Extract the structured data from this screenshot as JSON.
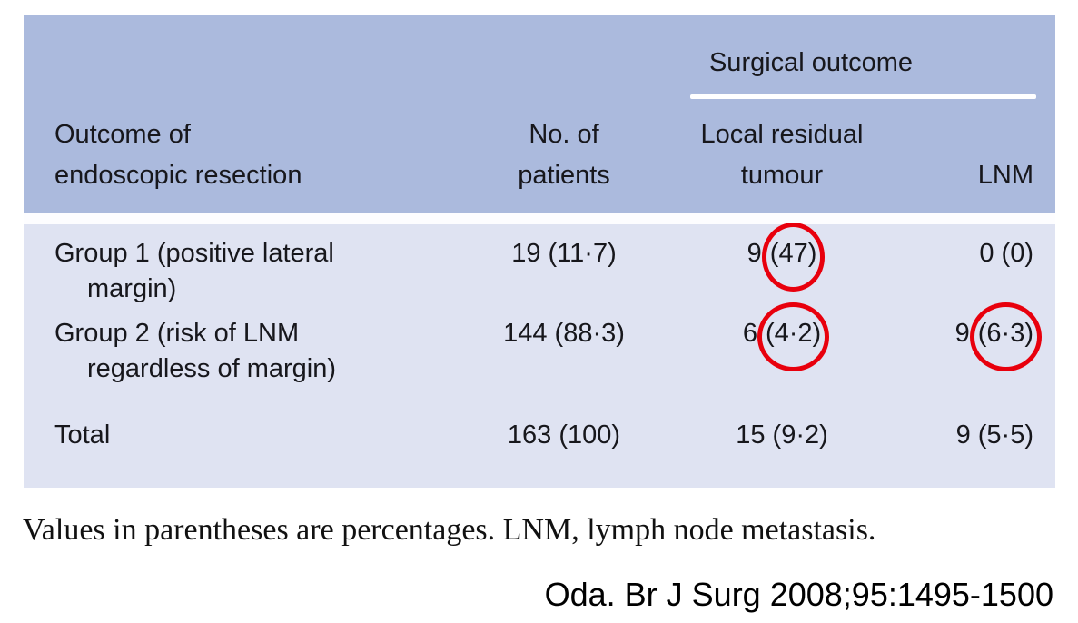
{
  "colors": {
    "header_bg": "#abbadd",
    "body_bg": "#dfe3f2",
    "circle_red": "#e8000d",
    "rule_white": "#ffffff"
  },
  "table": {
    "spanner": "Surgical outcome",
    "headers": {
      "outcome_l1": "Outcome of",
      "outcome_l2": "endoscopic resection",
      "patients_l1": "No. of",
      "patients_l2": "patients",
      "local_l1": "Local residual",
      "local_l2": "tumour",
      "lnm": "LNM"
    },
    "rows": [
      {
        "label_l1": "Group 1 (positive lateral",
        "label_l2": "margin)",
        "patients": "19 (11·7)",
        "local_prefix": "9",
        "local_circled": "(47)",
        "lnm": "0 (0)"
      },
      {
        "label_l1": "Group 2 (risk of LNM",
        "label_l2": "regardless of margin)",
        "patients": "144 (88·3)",
        "local_prefix": "6",
        "local_circled": "(4·2)",
        "lnm_prefix": "9",
        "lnm_circled": "(6·3)"
      },
      {
        "label_l1": "Total",
        "patients": "163 (100)",
        "local": "15 (9·2)",
        "lnm": "9 (5·5)"
      }
    ]
  },
  "footnote": "Values in parentheses are percentages. LNM, lymph node metastasis.",
  "citation": "Oda. Br J Surg 2008;95:1495-1500"
}
